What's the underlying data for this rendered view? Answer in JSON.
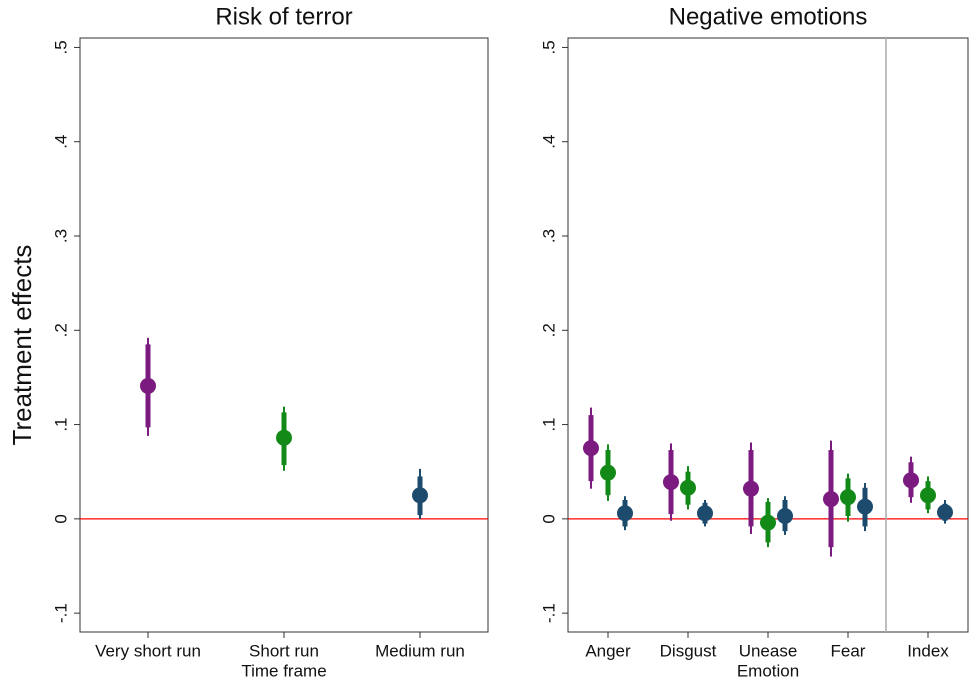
{
  "chart_data": [
    {
      "type": "coefplot",
      "title": "Risk of terror",
      "ylabel": "Treatment effects",
      "xlabel": "Time frame",
      "categories": [
        "Very short run",
        "Short run",
        "Medium run"
      ],
      "series": [
        {
          "colors": [
            "#7b1b80",
            "#138a18",
            "#1c4b6e"
          ],
          "values": [
            0.141,
            0.086,
            0.025
          ],
          "lo": [
            0.097,
            0.057,
            0.004
          ],
          "hi": [
            0.185,
            0.113,
            0.045
          ],
          "lo95": [
            0.088,
            0.051,
            0.0
          ],
          "hi95": [
            0.192,
            0.119,
            0.053
          ]
        }
      ],
      "ylim": [
        -0.12,
        0.51
      ],
      "yticks": [
        {
          "value": -0.1,
          "label": "-.1"
        },
        0,
        {
          "value": 0.1,
          "label": ".1"
        },
        {
          "value": 0.2,
          "label": ".2"
        },
        {
          "value": 0.3,
          "label": ".3"
        },
        {
          "value": 0.4,
          "label": ".4"
        },
        {
          "value": 0.5,
          "label": ".5"
        }
      ],
      "refline": 0,
      "refline_color": "#ff0000"
    },
    {
      "type": "coefplot",
      "title": "Negative emotions",
      "xlabel": "Emotion",
      "categories": [
        "Anger",
        "Disgust",
        "Unease",
        "Fear",
        "Index"
      ],
      "series": [
        {
          "color": "#7b1b80",
          "values": [
            0.075,
            0.039,
            0.032,
            0.021,
            0.041
          ],
          "lo": [
            0.04,
            0.005,
            -0.008,
            -0.03,
            0.023
          ],
          "hi": [
            0.11,
            0.073,
            0.073,
            0.073,
            0.06
          ],
          "lo95": [
            0.032,
            -0.002,
            -0.016,
            -0.04,
            0.017
          ],
          "hi95": [
            0.118,
            0.08,
            0.081,
            0.083,
            0.066
          ]
        },
        {
          "color": "#138a18",
          "values": [
            0.049,
            0.033,
            -0.004,
            0.023,
            0.025
          ],
          "lo": [
            0.025,
            0.015,
            -0.025,
            0.003,
            0.01
          ],
          "hi": [
            0.073,
            0.05,
            0.018,
            0.043,
            0.04
          ],
          "lo95": [
            0.019,
            0.01,
            -0.03,
            -0.003,
            0.006
          ],
          "hi95": [
            0.079,
            0.056,
            0.022,
            0.048,
            0.045
          ]
        },
        {
          "color": "#1c4b6e",
          "values": [
            0.006,
            0.006,
            0.003,
            0.013,
            0.007
          ],
          "lo": [
            -0.008,
            -0.005,
            -0.013,
            -0.008,
            -0.002
          ],
          "hi": [
            0.02,
            0.017,
            0.02,
            0.033,
            0.016
          ],
          "lo95": [
            -0.012,
            -0.008,
            -0.017,
            -0.013,
            -0.005
          ],
          "hi95": [
            0.024,
            0.02,
            0.024,
            0.038,
            0.02
          ]
        }
      ],
      "ylim": [
        -0.12,
        0.51
      ],
      "yticks": [
        {
          "value": -0.1,
          "label": "-.1"
        },
        0,
        {
          "value": 0.1,
          "label": ".1"
        },
        {
          "value": 0.2,
          "label": ".2"
        },
        {
          "value": 0.3,
          "label": ".3"
        },
        {
          "value": 0.4,
          "label": ".4"
        },
        {
          "value": 0.5,
          "label": ".5"
        }
      ],
      "refline": 0,
      "refline_color": "#ff0000"
    }
  ]
}
